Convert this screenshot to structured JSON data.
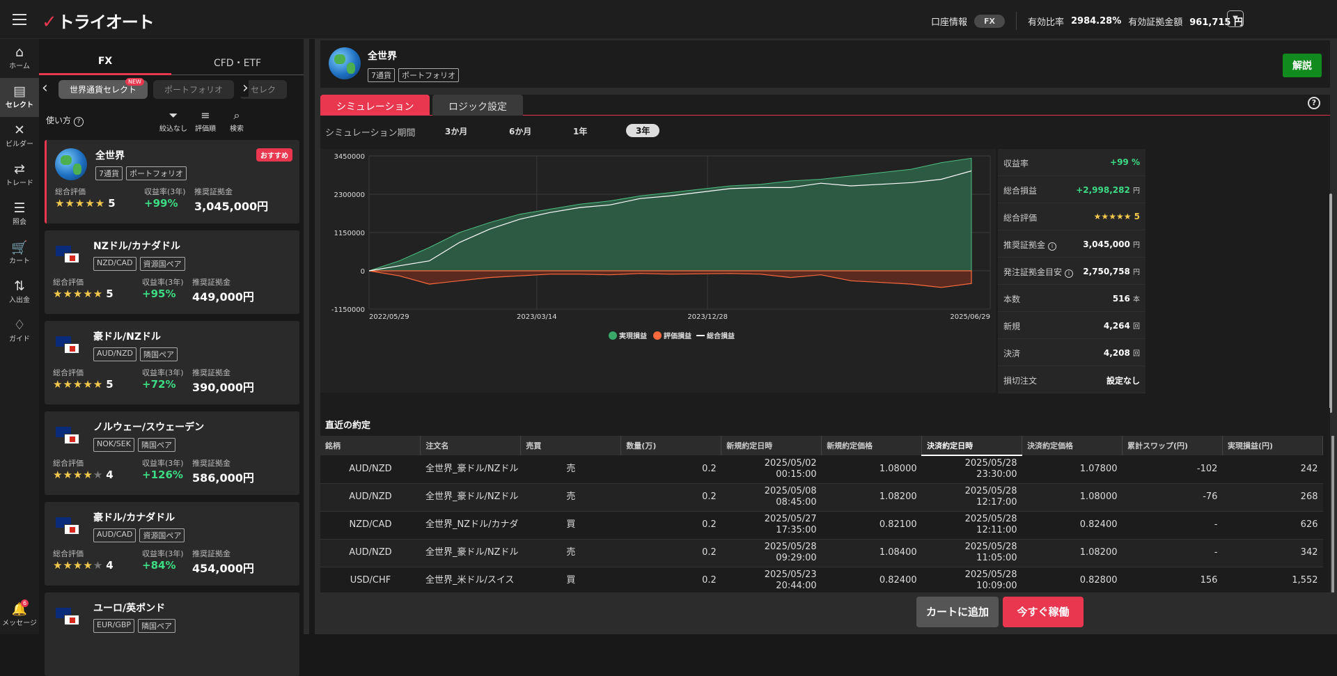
{
  "topbar": {
    "account_label": "口座情報",
    "account_pill": "FX",
    "ratio_label": "有効比率",
    "ratio_value": "2984.28%",
    "margin_label": "有効証拠金額",
    "margin_value": "961,715 円"
  },
  "nav": [
    {
      "label": "ホーム",
      "icon": "home-icon",
      "glyph": "⌂"
    },
    {
      "label": "セレクト",
      "icon": "select-icon",
      "glyph": "▤"
    },
    {
      "label": "ビルダー",
      "icon": "builder-icon",
      "glyph": "✕"
    },
    {
      "label": "トレード",
      "icon": "trade-icon",
      "glyph": "⇄"
    },
    {
      "label": "照会",
      "icon": "inquiry-icon",
      "glyph": "☰"
    },
    {
      "label": "カート",
      "icon": "cart-icon",
      "glyph": "🛒"
    },
    {
      "label": "入出金",
      "icon": "transfer-icon",
      "glyph": "⇅"
    },
    {
      "label": "ガイド",
      "icon": "guide-icon",
      "glyph": "♢"
    }
  ],
  "nav_message": {
    "label": "メッセージ",
    "badge": "6"
  },
  "left": {
    "tabs": [
      "FX",
      "CFD・ETF"
    ],
    "categories": [
      "世界通貨セレクト",
      "ポートフォリオ",
      "セレク"
    ],
    "new_badge": "NEW",
    "howto": "使い方",
    "tools": [
      "絞込なし",
      "評価順",
      "検索"
    ],
    "lbl_rating": "総合評価",
    "lbl_return": "収益率(3年)",
    "lbl_margin": "推奨証拠金"
  },
  "cards": [
    {
      "name": "全世界",
      "tags": [
        "7通貨",
        "ポートフォリオ"
      ],
      "stars": 5,
      "score": "5",
      "ret": "+99%",
      "amount": "3,045,000円",
      "badge": "おすすめ"
    },
    {
      "name": "NZドル/カナダドル",
      "tags": [
        "NZD/CAD",
        "資源国ペア"
      ],
      "stars": 5,
      "score": "5",
      "ret": "+95%",
      "amount": "449,000円"
    },
    {
      "name": "豪ドル/NZドル",
      "tags": [
        "AUD/NZD",
        "隣国ペア"
      ],
      "stars": 5,
      "score": "5",
      "ret": "+72%",
      "amount": "390,000円"
    },
    {
      "name": "ノルウェー/スウェーデン",
      "tags": [
        "NOK/SEK",
        "隣国ペア"
      ],
      "stars": 4,
      "score": "4",
      "ret": "+126%",
      "amount": "586,000円"
    },
    {
      "name": "豪ドル/カナダドル",
      "tags": [
        "AUD/CAD",
        "資源国ペア"
      ],
      "stars": 4,
      "score": "4",
      "ret": "+84%",
      "amount": "454,000円"
    },
    {
      "name": "ユーロ/英ポンド",
      "tags": [
        "EUR/GBP",
        "隣国ペア"
      ]
    }
  ],
  "header": {
    "title": "全世界",
    "tags": [
      "7通貨",
      "ポートフォリオ"
    ],
    "explain": "解説"
  },
  "sim": {
    "tab1": "シミュレーション",
    "tab2": "ロジック設定",
    "period_label": "シミュレーション期間",
    "periods": [
      "3か月",
      "6か月",
      "1年",
      "3年"
    ]
  },
  "chart_data": {
    "type": "area",
    "x_ticks": [
      "2022/05/29",
      "2023/03/14",
      "2023/12/28",
      "2025/06/29"
    ],
    "y_ticks": [
      "3450000",
      "2300000",
      "1150000",
      "0",
      "-1150000"
    ],
    "ylim": [
      -1150000,
      3450000
    ],
    "grid": true,
    "legend_position": "bottom",
    "series": [
      {
        "name": "実現損益",
        "color": "#3aa86b",
        "x": [
          0,
          0.05,
          0.1,
          0.15,
          0.2,
          0.25,
          0.3,
          0.35,
          0.4,
          0.45,
          0.5,
          0.55,
          0.6,
          0.65,
          0.7,
          0.75,
          0.8,
          0.85,
          0.9,
          0.95,
          1.0
        ],
        "values": [
          0,
          300000,
          700000,
          1150000,
          1450000,
          1700000,
          1850000,
          2000000,
          2100000,
          2250000,
          2350000,
          2450000,
          2550000,
          2600000,
          2700000,
          2750000,
          2850000,
          2950000,
          3050000,
          3250000,
          3380000
        ]
      },
      {
        "name": "評価損益",
        "color": "#ff6a3d",
        "x": [
          0,
          0.05,
          0.1,
          0.15,
          0.2,
          0.25,
          0.3,
          0.35,
          0.4,
          0.45,
          0.5,
          0.55,
          0.6,
          0.65,
          0.7,
          0.75,
          0.8,
          0.85,
          0.9,
          0.95,
          1.0
        ],
        "values": [
          0,
          -150000,
          -400000,
          -300000,
          -200000,
          -150000,
          -100000,
          -100000,
          -120000,
          -80000,
          -100000,
          -90000,
          -80000,
          -100000,
          -200000,
          -120000,
          -300000,
          -350000,
          -400000,
          -500000,
          -380000
        ]
      },
      {
        "name": "総合損益",
        "color": "#ffffff",
        "x": [
          0,
          0.05,
          0.1,
          0.15,
          0.2,
          0.25,
          0.3,
          0.35,
          0.4,
          0.45,
          0.5,
          0.55,
          0.6,
          0.65,
          0.7,
          0.75,
          0.8,
          0.85,
          0.9,
          0.95,
          1.0
        ],
        "values": [
          0,
          150000,
          300000,
          850000,
          1250000,
          1550000,
          1750000,
          1900000,
          1980000,
          2170000,
          2250000,
          2360000,
          2470000,
          2500000,
          2500000,
          2630000,
          2550000,
          2600000,
          2650000,
          2750000,
          3000000
        ]
      }
    ]
  },
  "stats": [
    {
      "k": "収益率",
      "v": "+99 %",
      "cls": "g"
    },
    {
      "k": "総合損益",
      "v": "+2,998,282",
      "unit": "円",
      "cls": "g"
    },
    {
      "k": "総合評価",
      "v": "★★★★★ 5",
      "cls": "y"
    },
    {
      "k": "推奨証拠金",
      "v": "3,045,000",
      "unit": "円",
      "info": true
    },
    {
      "k": "発注証拠金目安",
      "v": "2,750,758",
      "unit": "円",
      "info": true
    },
    {
      "k": "本数",
      "v": "516",
      "unit": "本"
    },
    {
      "k": "新規",
      "v": "4,264",
      "unit": "回"
    },
    {
      "k": "決済",
      "v": "4,208",
      "unit": "回"
    },
    {
      "k": "損切注文",
      "v": "設定なし"
    }
  ],
  "trades": {
    "title": "直近の約定",
    "headers": [
      "銘柄",
      "注文名",
      "売買",
      "数量(万)",
      "新規約定日時",
      "新規約定価格",
      "決済約定日時",
      "決済約定価格",
      "累計スワップ(円)",
      "実現損益(円)"
    ],
    "rows": [
      [
        "AUD/NZD",
        "全世界_豪ドル/NZドル",
        "売",
        "0.2",
        "2025/05/02",
        "00:15:00",
        "1.08000",
        "2025/05/28",
        "23:30:00",
        "1.07800",
        "-102",
        "242"
      ],
      [
        "AUD/NZD",
        "全世界_豪ドル/NZドル",
        "売",
        "0.2",
        "2025/05/08",
        "08:45:00",
        "1.08200",
        "2025/05/28",
        "12:17:00",
        "1.08000",
        "-76",
        "268"
      ],
      [
        "NZD/CAD",
        "全世界_NZドル/カナダ",
        "買",
        "0.2",
        "2025/05/27",
        "17:35:00",
        "0.82100",
        "2025/05/28",
        "12:11:00",
        "0.82400",
        "-",
        "626"
      ],
      [
        "AUD/NZD",
        "全世界_豪ドル/NZドル",
        "売",
        "0.2",
        "2025/05/28",
        "09:29:00",
        "1.08400",
        "2025/05/28",
        "11:05:00",
        "1.08200",
        "-",
        "342"
      ],
      [
        "USD/CHF",
        "全世界_米ドル/スイス",
        "買",
        "0.2",
        "2025/05/23",
        "20:44:00",
        "0.82400",
        "2025/05/28",
        "10:09:00",
        "0.82800",
        "156",
        "1,552"
      ]
    ]
  },
  "buttons": {
    "cart": "カートに追加",
    "run": "今すぐ稼働"
  }
}
